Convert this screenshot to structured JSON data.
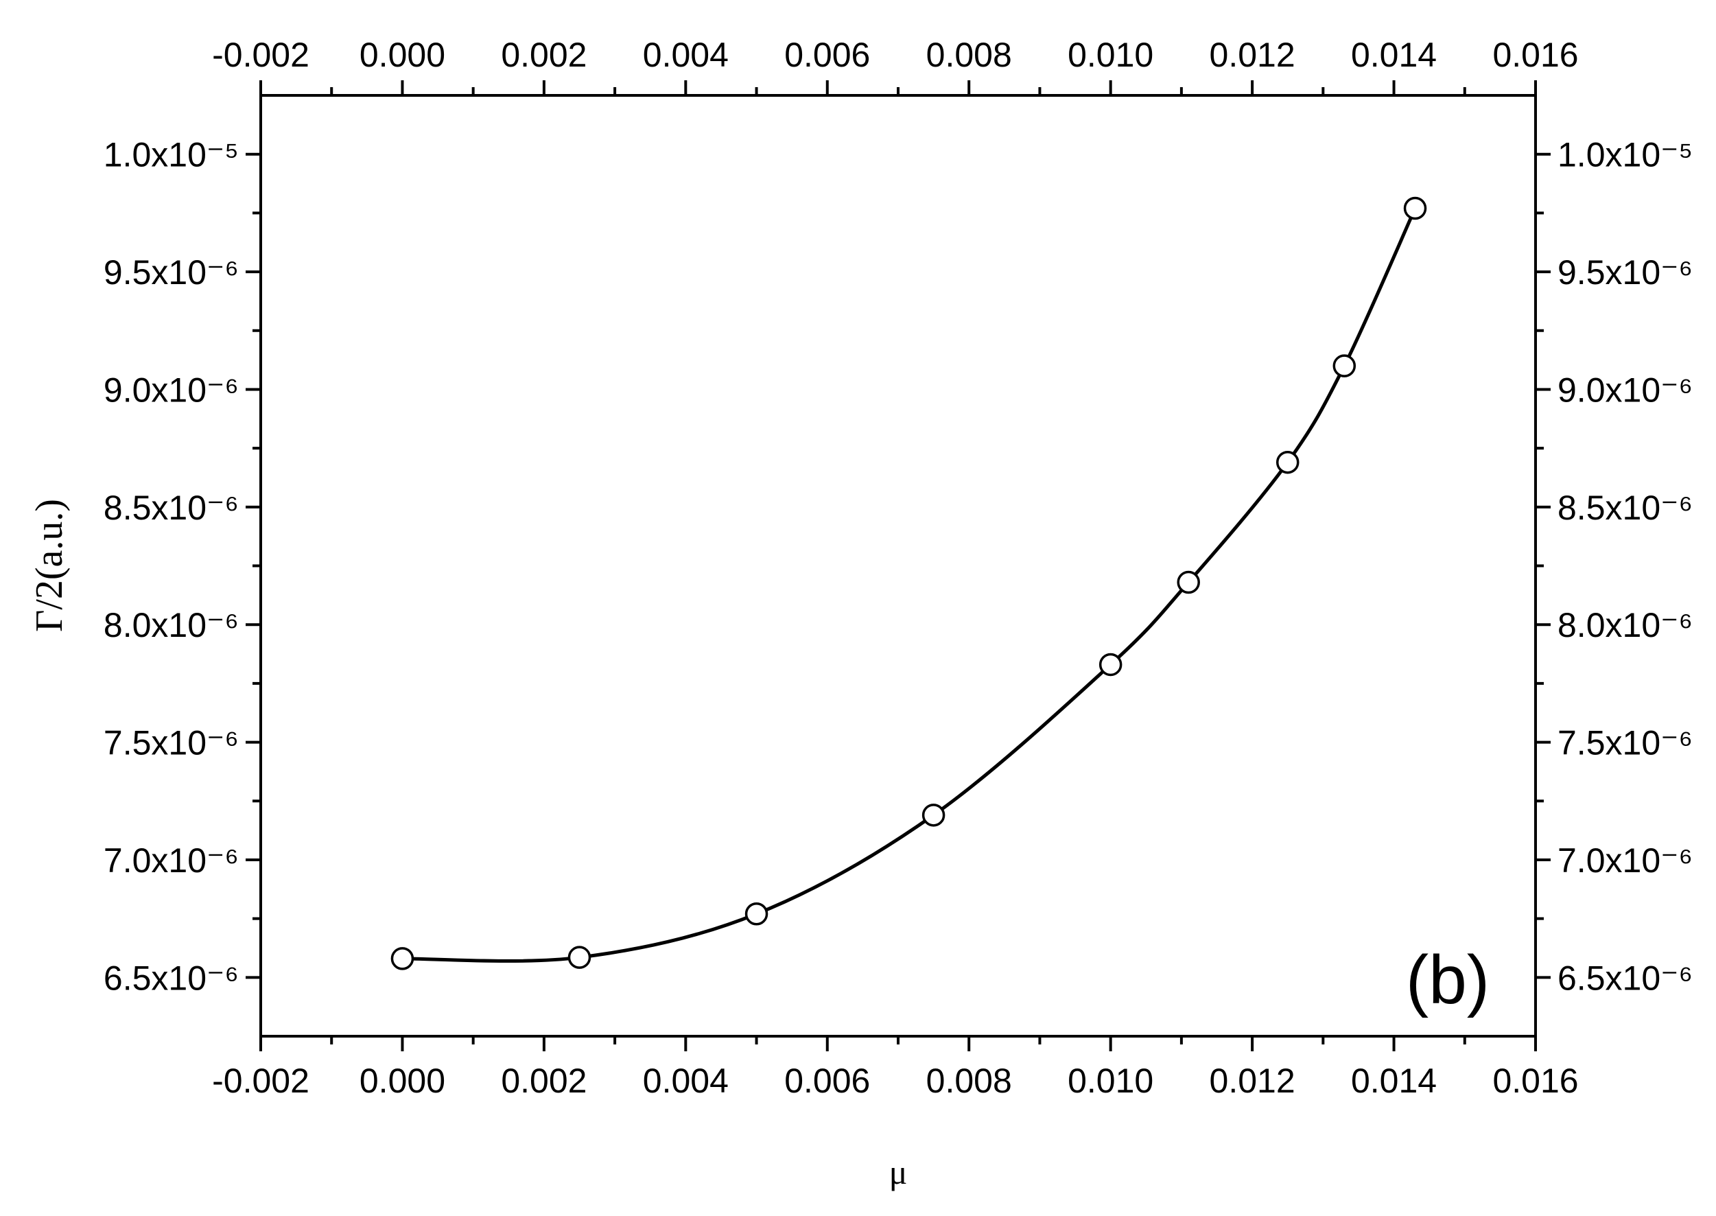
{
  "chart_data": {
    "type": "line",
    "x_label": "μ",
    "y_label": "Γ/2(a.u.)",
    "annotation": "(b)",
    "x": [
      0,
      0.0025,
      0.005,
      0.0075,
      0.01,
      0.0111,
      0.0125,
      0.0133,
      0.0143
    ],
    "series": [
      {
        "color": "#000000",
        "values": [
          6.58e-06,
          6.585e-06,
          6.77e-06,
          7.19e-06,
          7.83e-06,
          8.18e-06,
          8.69e-06,
          9.1e-06,
          9.77e-06
        ]
      }
    ],
    "xlim": [
      -0.002,
      0.016
    ],
    "xticks": [
      {
        "value": -0.002,
        "label": "-0.002"
      },
      {
        "value": 0,
        "label": "0.000"
      },
      {
        "value": 0.002,
        "label": "0.002"
      },
      {
        "value": 0.004,
        "label": "0.004"
      },
      {
        "value": 0.006,
        "label": "0.006"
      },
      {
        "value": 0.008,
        "label": "0.008"
      },
      {
        "value": 0.01,
        "label": "0.010"
      },
      {
        "value": 0.012,
        "label": "0.012"
      },
      {
        "value": 0.014,
        "label": "0.014"
      },
      {
        "value": 0.016,
        "label": "0.016"
      }
    ],
    "ylim": [
      6.25e-06,
      1.025e-05
    ],
    "yticks": [
      {
        "value": 6.5e-06,
        "label": "6.5x10⁻⁶"
      },
      {
        "value": 7e-06,
        "label": "7.0x10⁻⁶"
      },
      {
        "value": 7.5e-06,
        "label": "7.5x10⁻⁶"
      },
      {
        "value": 8e-06,
        "label": "8.0x10⁻⁶"
      },
      {
        "value": 8.5e-06,
        "label": "8.5x10⁻⁶"
      },
      {
        "value": 9e-06,
        "label": "9.0x10⁻⁶"
      },
      {
        "value": 9.5e-06,
        "label": "9.5x10⁻⁶"
      },
      {
        "value": 1e-05,
        "label": "1.0x10⁻⁵"
      }
    ],
    "mirror_axes": true,
    "marker": "open-circle"
  }
}
